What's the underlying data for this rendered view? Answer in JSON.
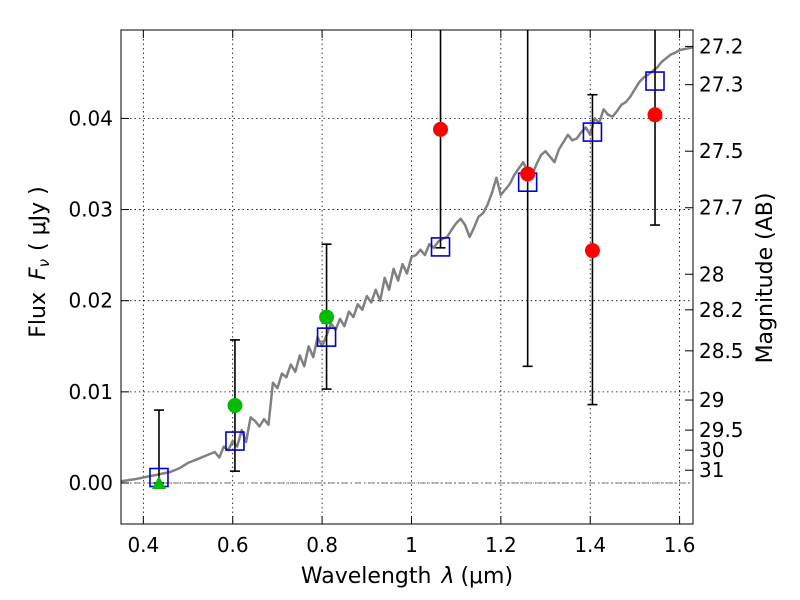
{
  "chart_data": {
    "type": "scatter",
    "xlabel_prefix": "Wavelength",
    "xlabel_symbol": "λ",
    "xlabel_units": "(μm)",
    "ylabel_text": "Flux",
    "ylabel_symbol": "F",
    "ylabel_sub": "ν",
    "ylabel_units": "( μJy )",
    "y2label": "Magnitude (AB)",
    "xlim": [
      0.35,
      1.63
    ],
    "ylim": [
      -0.0045,
      0.0497
    ],
    "x_ticks": [
      0.4,
      0.6,
      0.8,
      1.0,
      1.2,
      1.4,
      1.6
    ],
    "x_tick_labels": [
      "0.4",
      "0.6",
      "0.8",
      "1",
      "1.2",
      "1.4",
      "1.6"
    ],
    "y_ticks": [
      0.0,
      0.01,
      0.02,
      0.03,
      0.04
    ],
    "y_tick_labels": [
      "0.00",
      "0.01",
      "0.02",
      "0.03",
      "0.04"
    ],
    "y2_ticks": [
      {
        "label": "27.2",
        "flux": 0.0479
      },
      {
        "label": "27.3",
        "flux": 0.0437
      },
      {
        "label": "27.5",
        "flux": 0.0364
      },
      {
        "label": "27.7",
        "flux": 0.0302
      },
      {
        "label": "28",
        "flux": 0.0229
      },
      {
        "label": "28.2",
        "flux": 0.019
      },
      {
        "label": "28.5",
        "flux": 0.0145
      },
      {
        "label": "29",
        "flux": 0.0091
      },
      {
        "label": "29.5",
        "flux": 0.0058
      },
      {
        "label": "30",
        "flux": 0.0036
      },
      {
        "label": "31",
        "flux": 0.0014
      }
    ],
    "grid": true,
    "colors": {
      "spectrum": "#808080",
      "model": "#0000cc",
      "red_points": "#ff0000",
      "green_points": "#00bb00",
      "errorbar": "#000000"
    },
    "series": [
      {
        "name": "spectrum",
        "style": "line",
        "x": [
          0.35,
          0.38,
          0.4,
          0.42,
          0.44,
          0.46,
          0.48,
          0.5,
          0.52,
          0.54,
          0.56,
          0.57,
          0.58,
          0.59,
          0.6,
          0.61,
          0.62,
          0.63,
          0.64,
          0.65,
          0.66,
          0.67,
          0.68,
          0.69,
          0.7,
          0.71,
          0.72,
          0.73,
          0.74,
          0.75,
          0.76,
          0.77,
          0.78,
          0.79,
          0.8,
          0.81,
          0.82,
          0.83,
          0.84,
          0.85,
          0.86,
          0.87,
          0.88,
          0.89,
          0.9,
          0.91,
          0.92,
          0.93,
          0.94,
          0.95,
          0.96,
          0.97,
          0.98,
          0.99,
          1.0,
          1.01,
          1.02,
          1.03,
          1.04,
          1.05,
          1.06,
          1.07,
          1.08,
          1.09,
          1.1,
          1.11,
          1.12,
          1.13,
          1.14,
          1.15,
          1.16,
          1.17,
          1.18,
          1.19,
          1.2,
          1.21,
          1.22,
          1.23,
          1.24,
          1.25,
          1.26,
          1.27,
          1.28,
          1.29,
          1.3,
          1.31,
          1.32,
          1.33,
          1.34,
          1.35,
          1.36,
          1.37,
          1.38,
          1.39,
          1.4,
          1.41,
          1.42,
          1.43,
          1.44,
          1.45,
          1.46,
          1.47,
          1.48,
          1.49,
          1.5,
          1.51,
          1.52,
          1.53,
          1.54,
          1.55,
          1.56,
          1.57,
          1.58,
          1.59,
          1.6,
          1.61,
          1.62,
          1.63
        ],
        "y": [
          0.0002,
          0.0004,
          0.0006,
          0.0008,
          0.001,
          0.0012,
          0.0016,
          0.0022,
          0.0026,
          0.003,
          0.0034,
          0.0028,
          0.004,
          0.0036,
          0.0046,
          0.004,
          0.0058,
          0.0045,
          0.0072,
          0.0068,
          0.0062,
          0.007,
          0.0064,
          0.011,
          0.0104,
          0.012,
          0.0116,
          0.013,
          0.0122,
          0.014,
          0.0128,
          0.015,
          0.0138,
          0.016,
          0.015,
          0.0162,
          0.0175,
          0.0168,
          0.018,
          0.0172,
          0.0188,
          0.0182,
          0.0196,
          0.019,
          0.0205,
          0.0198,
          0.0212,
          0.02,
          0.0225,
          0.0212,
          0.0235,
          0.0222,
          0.024,
          0.023,
          0.0248,
          0.025,
          0.0256,
          0.025,
          0.0262,
          0.0258,
          0.0265,
          0.0268,
          0.027,
          0.0278,
          0.0285,
          0.029,
          0.0283,
          0.027,
          0.028,
          0.0292,
          0.0296,
          0.0305,
          0.0318,
          0.0335,
          0.0316,
          0.0322,
          0.0328,
          0.0338,
          0.0345,
          0.0352,
          0.0342,
          0.0338,
          0.035,
          0.036,
          0.0364,
          0.0358,
          0.0352,
          0.0366,
          0.0374,
          0.0382,
          0.0376,
          0.0378,
          0.0385,
          0.039,
          0.0382,
          0.04,
          0.0395,
          0.041,
          0.0404,
          0.0402,
          0.0408,
          0.0415,
          0.0418,
          0.0424,
          0.0432,
          0.044,
          0.0445,
          0.0448,
          0.0452,
          0.0456,
          0.0462,
          0.0466,
          0.047,
          0.0472,
          0.0475,
          0.0476,
          0.0477,
          0.0478
        ]
      },
      {
        "name": "model",
        "style": "open-square",
        "x": [
          0.435,
          0.605,
          0.81,
          1.065,
          1.26,
          1.405,
          1.545
        ],
        "y": [
          0.0006,
          0.0046,
          0.016,
          0.0259,
          0.033,
          0.0385,
          0.0441
        ]
      },
      {
        "name": "observed (red)",
        "style": "filled-circle",
        "x": [
          1.065,
          1.26,
          1.405,
          1.545
        ],
        "y": [
          0.0388,
          0.0339,
          0.0255,
          0.0404
        ],
        "yerr_low": [
          0.0258,
          0.0128,
          0.0086,
          0.0283
        ],
        "yerr_high": [
          0.053,
          0.053,
          0.0426,
          0.053
        ]
      },
      {
        "name": "observed (green)",
        "style": "filled-circle",
        "x": [
          0.605,
          0.81
        ],
        "y": [
          0.0085,
          0.0182
        ],
        "yerr_low": [
          0.0013,
          0.0103
        ],
        "yerr_high": [
          0.0157,
          0.0262
        ]
      },
      {
        "name": "observed (green, upper limit)",
        "style": "filled-triangle",
        "x": [
          0.435
        ],
        "y": [
          0.0
        ],
        "yerr_low": [
          0.0
        ],
        "yerr_high": [
          0.008
        ]
      }
    ]
  }
}
